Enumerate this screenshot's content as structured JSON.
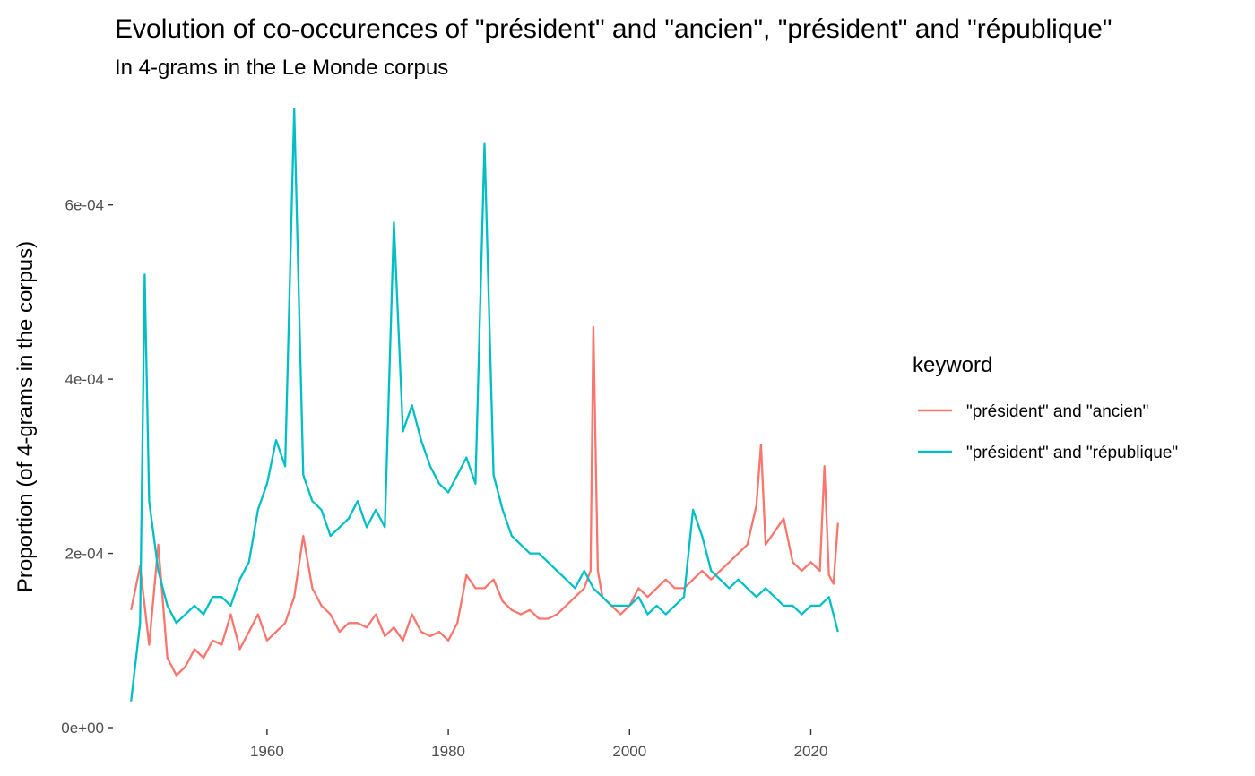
{
  "chart_data": {
    "type": "line",
    "title": "Evolution of co-occurences of \"président\" and \"ancien\", \"président\" and \"république\"",
    "subtitle": "In 4-grams in the Le Monde corpus",
    "xlabel": "",
    "ylabel": "Proportion (of 4-grams in the corpus)",
    "xlim": [
      1943,
      2024.5
    ],
    "ylim": [
      0,
      0.00072
    ],
    "x_ticks": [
      1960,
      1980,
      2000,
      2020
    ],
    "x_tick_labels": [
      "1960",
      "1980",
      "2000",
      "2020"
    ],
    "y_ticks": [
      0,
      0.0002,
      0.0004,
      0.0006
    ],
    "y_tick_labels": [
      "0e+00",
      "2e-04",
      "4e-04",
      "6e-04"
    ],
    "grid": false,
    "legend": {
      "title": "keyword",
      "position": "right"
    },
    "series": [
      {
        "name": "\"président\" and \"ancien\"",
        "color": "#F8766D",
        "x": [
          1945.0,
          1946.0,
          1947.0,
          1948.0,
          1949.0,
          1950.0,
          1951.0,
          1952.0,
          1953.0,
          1954.0,
          1955.0,
          1956.0,
          1957.0,
          1958.0,
          1959.0,
          1960.0,
          1961.0,
          1962.0,
          1963.0,
          1964.0,
          1965.0,
          1966.0,
          1967.0,
          1968.0,
          1969.0,
          1970.0,
          1971.0,
          1972.0,
          1973.0,
          1974.0,
          1975.0,
          1976.0,
          1977.0,
          1978.0,
          1979.0,
          1980.0,
          1981.0,
          1982.0,
          1983.0,
          1984.0,
          1985.0,
          1986.0,
          1987.0,
          1988.0,
          1989.0,
          1990.0,
          1991.0,
          1992.0,
          1993.0,
          1994.0,
          1995.0,
          1995.7,
          1996.0,
          1996.5,
          1997.0,
          1998.0,
          1999.0,
          2000.0,
          2001.0,
          2002.0,
          2003.0,
          2004.0,
          2005.0,
          2006.0,
          2007.0,
          2008.0,
          2009.0,
          2010.0,
          2011.0,
          2012.0,
          2013.0,
          2014.0,
          2014.5,
          2015.0,
          2016.0,
          2017.0,
          2018.0,
          2019.0,
          2020.0,
          2021.0,
          2021.5,
          2022.0,
          2022.5,
          2023.0
        ],
        "y": [
          0.000135,
          0.000185,
          9.5e-05,
          0.00021,
          8e-05,
          6e-05,
          7e-05,
          9e-05,
          8e-05,
          0.0001,
          9.5e-05,
          0.00013,
          9e-05,
          0.00011,
          0.00013,
          0.0001,
          0.00011,
          0.00012,
          0.00015,
          0.00022,
          0.00016,
          0.00014,
          0.00013,
          0.00011,
          0.00012,
          0.00012,
          0.000115,
          0.00013,
          0.000105,
          0.000115,
          0.0001,
          0.00013,
          0.00011,
          0.000105,
          0.00011,
          0.0001,
          0.00012,
          0.000175,
          0.00016,
          0.00016,
          0.00017,
          0.000145,
          0.000135,
          0.00013,
          0.000135,
          0.000125,
          0.000125,
          0.00013,
          0.00014,
          0.00015,
          0.00016,
          0.00018,
          0.00046,
          0.00018,
          0.00015,
          0.00014,
          0.00013,
          0.00014,
          0.00016,
          0.00015,
          0.00016,
          0.00017,
          0.00016,
          0.00016,
          0.00017,
          0.00018,
          0.00017,
          0.00018,
          0.00019,
          0.0002,
          0.00021,
          0.000255,
          0.000325,
          0.00021,
          0.000225,
          0.00024,
          0.00019,
          0.00018,
          0.00019,
          0.00018,
          0.0003,
          0.000175,
          0.000165,
          0.000235
        ]
      },
      {
        "name": "\"président\" and \"république\"",
        "color": "#00BFC4",
        "x": [
          1945.0,
          1946.0,
          1946.5,
          1947.0,
          1948.0,
          1949.0,
          1950.0,
          1951.0,
          1952.0,
          1953.0,
          1954.0,
          1955.0,
          1956.0,
          1957.0,
          1958.0,
          1959.0,
          1960.0,
          1961.0,
          1962.0,
          1963.0,
          1964.0,
          1965.0,
          1966.0,
          1967.0,
          1968.0,
          1969.0,
          1970.0,
          1971.0,
          1972.0,
          1973.0,
          1974.0,
          1975.0,
          1976.0,
          1977.0,
          1978.0,
          1979.0,
          1980.0,
          1981.0,
          1982.0,
          1983.0,
          1984.0,
          1985.0,
          1986.0,
          1987.0,
          1988.0,
          1989.0,
          1990.0,
          1991.0,
          1992.0,
          1993.0,
          1994.0,
          1995.0,
          1996.0,
          1997.0,
          1998.0,
          1999.0,
          2000.0,
          2001.0,
          2002.0,
          2003.0,
          2004.0,
          2005.0,
          2006.0,
          2007.0,
          2008.0,
          2009.0,
          2010.0,
          2011.0,
          2012.0,
          2013.0,
          2014.0,
          2015.0,
          2016.0,
          2017.0,
          2018.0,
          2019.0,
          2020.0,
          2021.0,
          2022.0,
          2023.0
        ],
        "y": [
          3e-05,
          0.00012,
          0.00052,
          0.00026,
          0.00018,
          0.00014,
          0.00012,
          0.00013,
          0.00014,
          0.00013,
          0.00015,
          0.00015,
          0.00014,
          0.00017,
          0.00019,
          0.00025,
          0.00028,
          0.00033,
          0.0003,
          0.00071,
          0.00029,
          0.00026,
          0.00025,
          0.00022,
          0.00023,
          0.00024,
          0.00026,
          0.00023,
          0.00025,
          0.00023,
          0.00058,
          0.00034,
          0.00037,
          0.00033,
          0.0003,
          0.00028,
          0.00027,
          0.00029,
          0.00031,
          0.00028,
          0.00067,
          0.00029,
          0.00025,
          0.00022,
          0.00021,
          0.0002,
          0.0002,
          0.00019,
          0.00018,
          0.00017,
          0.00016,
          0.00018,
          0.00016,
          0.00015,
          0.00014,
          0.00014,
          0.00014,
          0.00015,
          0.00013,
          0.00014,
          0.00013,
          0.00014,
          0.00015,
          0.00025,
          0.00022,
          0.00018,
          0.00017,
          0.00016,
          0.00017,
          0.00016,
          0.00015,
          0.00016,
          0.00015,
          0.00014,
          0.00014,
          0.00013,
          0.00014,
          0.00014,
          0.00015,
          0.00011
        ]
      }
    ]
  }
}
